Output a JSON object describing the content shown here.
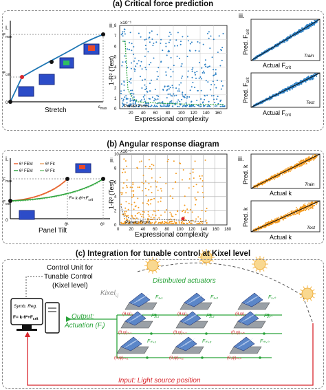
{
  "colors": {
    "accent_blue": "#2a7fc4",
    "accent_orange": "#f39a1f",
    "green": "#2aa33a",
    "red": "#d8262c",
    "dark": "#111111"
  },
  "section_a": {
    "title": "(a) Critical force prediction",
    "i": {
      "label": "i.",
      "fmax": "F",
      "fmax_sub": "max",
      "fcrit": "F",
      "fcrit_sub": "crit",
      "zero": "0",
      "emax": "ε",
      "emax_sub": "max",
      "xlabel": "Stretch"
    },
    "ii": {
      "label": "ii.",
      "exp": "x10⁻¹",
      "ylabel": "1-R² (Test)",
      "xlabel": "Expressional complexity",
      "pareto": "Pareto Front",
      "yticks": [
        "0",
        "1",
        "2",
        "3",
        "4",
        "5",
        "6",
        "7",
        "8"
      ],
      "xticks": [
        "20",
        "40",
        "60",
        "80",
        "100",
        "120",
        "140",
        "160"
      ]
    },
    "iii": {
      "label": "iii.",
      "top_ylabel": "Pred. F",
      "top_ylabel_sub": "crit",
      "top_xlabel": "Actual F",
      "top_xlabel_sub": "crit",
      "top_tag": "Train",
      "bot_ylabel": "Pred. F",
      "bot_ylabel_sub": "crit",
      "bot_xlabel": "Actual F",
      "bot_xlabel_sub": "crit",
      "bot_tag": "Test"
    }
  },
  "section_b": {
    "title": "(b) Angular response diagram",
    "i": {
      "label": "i.",
      "fmax": "F",
      "fmax_sub": "max",
      "fcrit": "F",
      "fcrit_sub": "crit",
      "zero": "0",
      "legend": [
        "θ¹ FEM",
        "θ¹ Fit",
        "θ² FEM",
        "θ² Fit"
      ],
      "equation": "F= k·θ²+F",
      "equation_sub": "crit",
      "theta1": "θ¹",
      "theta2": "θ²",
      "xlabel": "Panel Tilt"
    },
    "ii": {
      "label": "ii.",
      "exp": "x10⁻¹",
      "ylabel": "1-R² (Test)",
      "xlabel": "Expressional complexity",
      "pareto": "Pareto Front",
      "yticks": [
        "0",
        "2",
        "4",
        "6",
        "8",
        "10"
      ],
      "xticks": [
        "0",
        "20",
        "40",
        "60",
        "80",
        "100",
        "120",
        "140",
        "160",
        "180"
      ]
    },
    "iii": {
      "label": "iii.",
      "top_ylabel": "Pred. k",
      "top_xlabel": "Actual k",
      "top_tag": "Train",
      "bot_ylabel": "Pred. k",
      "bot_xlabel": "Actual k",
      "bot_tag": "Test"
    }
  },
  "section_c": {
    "title": "(c) Integration for tunable control at Kixel level",
    "control_unit": [
      "Control Unit for",
      "Tunable Control",
      "(Kixel level)"
    ],
    "symb_reg": "Symb. Reg.",
    "eq": "F= k·θ²+F",
    "eq_sub": "crit",
    "distributed": "Distributed actuators",
    "kixel": "Kixel",
    "kixel_sub": "i,j",
    "output1": "Output:",
    "output2": "Actuation (F",
    "output2_sub": "i",
    "input": "Input: Light source position",
    "forces": [
      [
        "F₁,₁",
        "F₁,₂",
        "F₁,ₙ"
      ],
      [
        "F₂,₁",
        "F₂,₂",
        "F₂,ₙ"
      ],
      [
        "Fₘ,₁",
        "Fₘ,₂",
        "Fₘ,ₙ"
      ]
    ],
    "angles": [
      [
        "(θ,ψ)₁,₁",
        "(θ,ψ)₁,₂",
        "(θ,ψ)₁,ₙ"
      ],
      [
        "(θ,ψ)₂,₁",
        "(θ,ψ)₂,₂",
        "(θ,ψ)₂,ₙ"
      ],
      [
        "(θ,ψ)ₘ,₁",
        "(θ,ψ)ₘ,₂",
        "(θ,ψ)ₘ,ₙ"
      ]
    ]
  }
}
